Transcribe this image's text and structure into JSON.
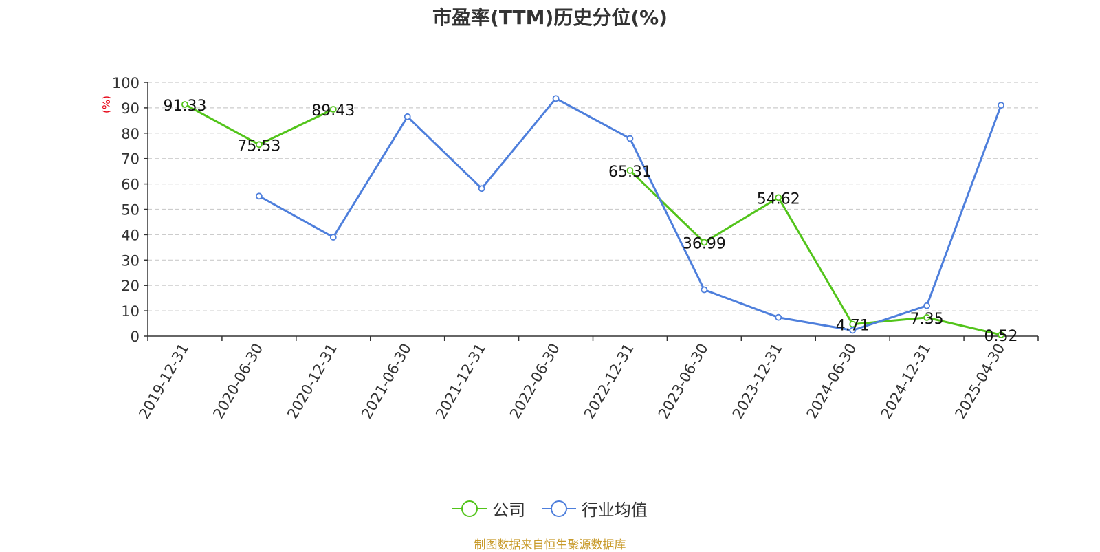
{
  "chart_data": {
    "type": "line",
    "title": "市盈率(TTM)历史分位(%)",
    "ylabel": "(%)",
    "ylim": [
      0,
      100
    ],
    "yticks": [
      0,
      10,
      20,
      30,
      40,
      50,
      60,
      70,
      80,
      90,
      100
    ],
    "categories": [
      "2019-12-31",
      "2020-06-30",
      "2020-12-31",
      "2021-06-30",
      "2021-12-31",
      "2022-06-30",
      "2022-12-31",
      "2023-06-30",
      "2023-12-31",
      "2024-06-30",
      "2024-12-31",
      "2025-04-30"
    ],
    "grid": true,
    "legend_position": "bottom",
    "series": [
      {
        "name": "公司",
        "color": "#52c41a",
        "values": [
          91.33,
          75.53,
          89.43,
          null,
          null,
          null,
          65.31,
          36.99,
          54.62,
          4.71,
          7.35,
          0.52
        ],
        "labels": [
          "91.33",
          "75.53",
          "89.43",
          "",
          "",
          "",
          "65.31",
          "36.99",
          "54.62",
          "4.71",
          "7.35",
          "0.52"
        ]
      },
      {
        "name": "行业均值",
        "color": "#4e7fdc",
        "values": [
          null,
          55.2,
          39.0,
          86.5,
          58.2,
          93.7,
          77.9,
          18.3,
          7.4,
          2.3,
          12.0,
          91.0
        ]
      }
    ]
  },
  "source": "制图数据来自恒生聚源数据库"
}
